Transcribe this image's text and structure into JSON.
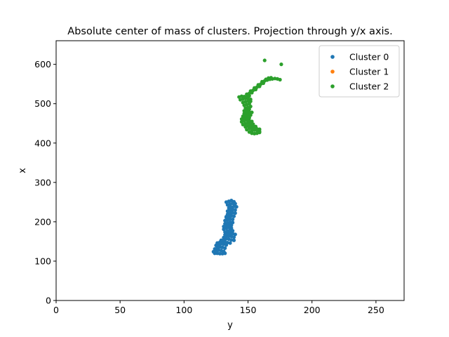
{
  "chart_data": {
    "type": "scatter",
    "title": "Absolute center of mass of clusters. Projection through y/x axis.",
    "xlabel": "y",
    "ylabel": "x",
    "xlim": [
      0,
      272
    ],
    "ylim": [
      0,
      660
    ],
    "xticks": [
      0,
      50,
      100,
      150,
      200,
      250
    ],
    "yticks": [
      0,
      100,
      200,
      300,
      400,
      500,
      600
    ],
    "grid": false,
    "legend_position": "top-right",
    "series": [
      {
        "name": "Cluster 0",
        "color": "#1f77b4",
        "points": [
          [
            124,
            120
          ],
          [
            126,
            120
          ],
          [
            128,
            119
          ],
          [
            130,
            119
          ],
          [
            132,
            120
          ],
          [
            123,
            124
          ],
          [
            125,
            126
          ],
          [
            127,
            128
          ],
          [
            129,
            127
          ],
          [
            131,
            125
          ],
          [
            124,
            131
          ],
          [
            126,
            134
          ],
          [
            128,
            136
          ],
          [
            130,
            135
          ],
          [
            132,
            133
          ],
          [
            125,
            140
          ],
          [
            127,
            142
          ],
          [
            129,
            144
          ],
          [
            131,
            143
          ],
          [
            133,
            141
          ],
          [
            126,
            146
          ],
          [
            128,
            148
          ],
          [
            130,
            150
          ],
          [
            132,
            149
          ],
          [
            134,
            147
          ],
          [
            136,
            146
          ],
          [
            129,
            153
          ],
          [
            131,
            155
          ],
          [
            133,
            157
          ],
          [
            135,
            156
          ],
          [
            137,
            154
          ],
          [
            139,
            153
          ],
          [
            131,
            160
          ],
          [
            133,
            162
          ],
          [
            135,
            164
          ],
          [
            137,
            163
          ],
          [
            139,
            161
          ],
          [
            132,
            167
          ],
          [
            134,
            169
          ],
          [
            136,
            171
          ],
          [
            138,
            170
          ],
          [
            140,
            168
          ],
          [
            132,
            174
          ],
          [
            134,
            176
          ],
          [
            136,
            178
          ],
          [
            138,
            177
          ],
          [
            131,
            181
          ],
          [
            133,
            183
          ],
          [
            135,
            185
          ],
          [
            137,
            184
          ],
          [
            131,
            188
          ],
          [
            133,
            190
          ],
          [
            135,
            192
          ],
          [
            137,
            191
          ],
          [
            132,
            195
          ],
          [
            134,
            197
          ],
          [
            136,
            199
          ],
          [
            138,
            198
          ],
          [
            132,
            203
          ],
          [
            134,
            205
          ],
          [
            136,
            207
          ],
          [
            138,
            206
          ],
          [
            133,
            211
          ],
          [
            135,
            213
          ],
          [
            137,
            215
          ],
          [
            139,
            214
          ],
          [
            134,
            219
          ],
          [
            136,
            221
          ],
          [
            138,
            223
          ],
          [
            140,
            222
          ],
          [
            134,
            227
          ],
          [
            136,
            229
          ],
          [
            138,
            231
          ],
          [
            140,
            230
          ],
          [
            135,
            235
          ],
          [
            137,
            237
          ],
          [
            139,
            239
          ],
          [
            141,
            238
          ],
          [
            134,
            243
          ],
          [
            136,
            245
          ],
          [
            138,
            247
          ],
          [
            140,
            246
          ],
          [
            133,
            250
          ],
          [
            135,
            252
          ],
          [
            137,
            254
          ],
          [
            139,
            251
          ],
          [
            136,
            241
          ],
          [
            137,
            225
          ],
          [
            133,
            213
          ],
          [
            134,
            187
          ]
        ]
      },
      {
        "name": "Cluster 1",
        "color": "#ff7f0e",
        "points": []
      },
      {
        "name": "Cluster 2",
        "color": "#2ca02c",
        "points": [
          [
            163,
            610
          ],
          [
            176,
            600
          ],
          [
            153,
            425
          ],
          [
            155,
            424
          ],
          [
            157,
            425
          ],
          [
            159,
            427
          ],
          [
            151,
            428
          ],
          [
            153,
            431
          ],
          [
            155,
            433
          ],
          [
            157,
            432
          ],
          [
            159,
            430
          ],
          [
            149,
            434
          ],
          [
            151,
            437
          ],
          [
            153,
            439
          ],
          [
            155,
            438
          ],
          [
            157,
            436
          ],
          [
            159,
            435
          ],
          [
            148,
            441
          ],
          [
            150,
            443
          ],
          [
            152,
            445
          ],
          [
            154,
            444
          ],
          [
            156,
            442
          ],
          [
            146,
            447
          ],
          [
            148,
            449
          ],
          [
            150,
            451
          ],
          [
            152,
            450
          ],
          [
            154,
            448
          ],
          [
            145,
            454
          ],
          [
            147,
            456
          ],
          [
            149,
            458
          ],
          [
            151,
            457
          ],
          [
            153,
            455
          ],
          [
            145,
            461
          ],
          [
            147,
            463
          ],
          [
            149,
            465
          ],
          [
            151,
            464
          ],
          [
            146,
            468
          ],
          [
            148,
            470
          ],
          [
            150,
            472
          ],
          [
            152,
            471
          ],
          [
            147,
            475
          ],
          [
            149,
            477
          ],
          [
            151,
            479
          ],
          [
            153,
            478
          ],
          [
            147,
            482
          ],
          [
            149,
            484
          ],
          [
            151,
            486
          ],
          [
            148,
            489
          ],
          [
            150,
            491
          ],
          [
            152,
            493
          ],
          [
            147,
            496
          ],
          [
            149,
            498
          ],
          [
            151,
            500
          ],
          [
            146,
            503
          ],
          [
            148,
            505
          ],
          [
            150,
            507
          ],
          [
            152,
            506
          ],
          [
            144,
            510
          ],
          [
            146,
            512
          ],
          [
            148,
            514
          ],
          [
            150,
            513
          ],
          [
            152,
            511
          ],
          [
            143,
            517
          ],
          [
            145,
            519
          ],
          [
            147,
            518
          ],
          [
            149,
            516
          ],
          [
            151,
            520
          ],
          [
            149,
            524
          ],
          [
            151,
            526
          ],
          [
            153,
            528
          ],
          [
            152,
            532
          ],
          [
            154,
            534
          ],
          [
            156,
            536
          ],
          [
            155,
            540
          ],
          [
            157,
            542
          ],
          [
            159,
            544
          ],
          [
            158,
            548
          ],
          [
            160,
            550
          ],
          [
            162,
            552
          ],
          [
            161,
            556
          ],
          [
            163,
            558
          ],
          [
            165,
            560
          ],
          [
            167,
            562
          ],
          [
            169,
            563
          ],
          [
            171,
            564
          ],
          [
            173,
            563
          ],
          [
            175,
            561
          ],
          [
            164,
            562
          ],
          [
            166,
            565
          ],
          [
            168,
            566
          ],
          [
            159,
            545
          ],
          [
            150,
            455
          ]
        ]
      }
    ]
  }
}
